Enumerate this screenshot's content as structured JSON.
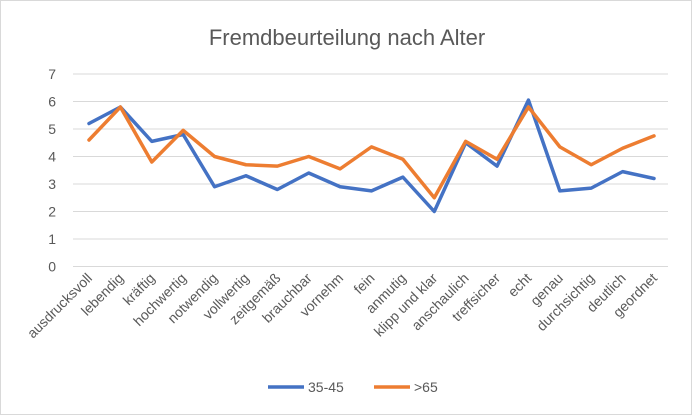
{
  "chart_data": {
    "type": "line",
    "title": "Fremdbeurteilung nach Alter",
    "xlabel": "",
    "ylabel": "",
    "ylim": [
      0,
      7
    ],
    "yticks": [
      "0",
      "1",
      "2",
      "3",
      "4",
      "5",
      "6",
      "7"
    ],
    "grid": true,
    "legend_position": "bottom",
    "categories": [
      "ausdrucksvoll",
      "lebendig",
      "kräftig",
      "hochwertig",
      "notwendig",
      "vollwertig",
      "zeitgemäß",
      "brauchbar",
      "vornehm",
      "fein",
      "anmutig",
      "klipp und klar",
      "anschaulich",
      "treffsicher",
      "echt",
      "genau",
      "durchsichtig",
      "deutlich",
      "geordnet"
    ],
    "series": [
      {
        "name": "35-45",
        "color": "#4472C4",
        "values": [
          5.2,
          5.8,
          4.55,
          4.8,
          2.9,
          3.3,
          2.8,
          3.4,
          2.9,
          2.75,
          3.25,
          2.0,
          4.5,
          3.65,
          6.05,
          2.75,
          2.85,
          3.45,
          3.2
        ]
      },
      {
        "name": ">65",
        "color": "#ED7D31",
        "values": [
          4.6,
          5.8,
          3.8,
          4.95,
          4.0,
          3.7,
          3.65,
          4.0,
          3.55,
          4.35,
          3.9,
          2.5,
          4.55,
          3.9,
          5.8,
          4.35,
          3.7,
          4.3,
          4.75
        ]
      }
    ]
  }
}
